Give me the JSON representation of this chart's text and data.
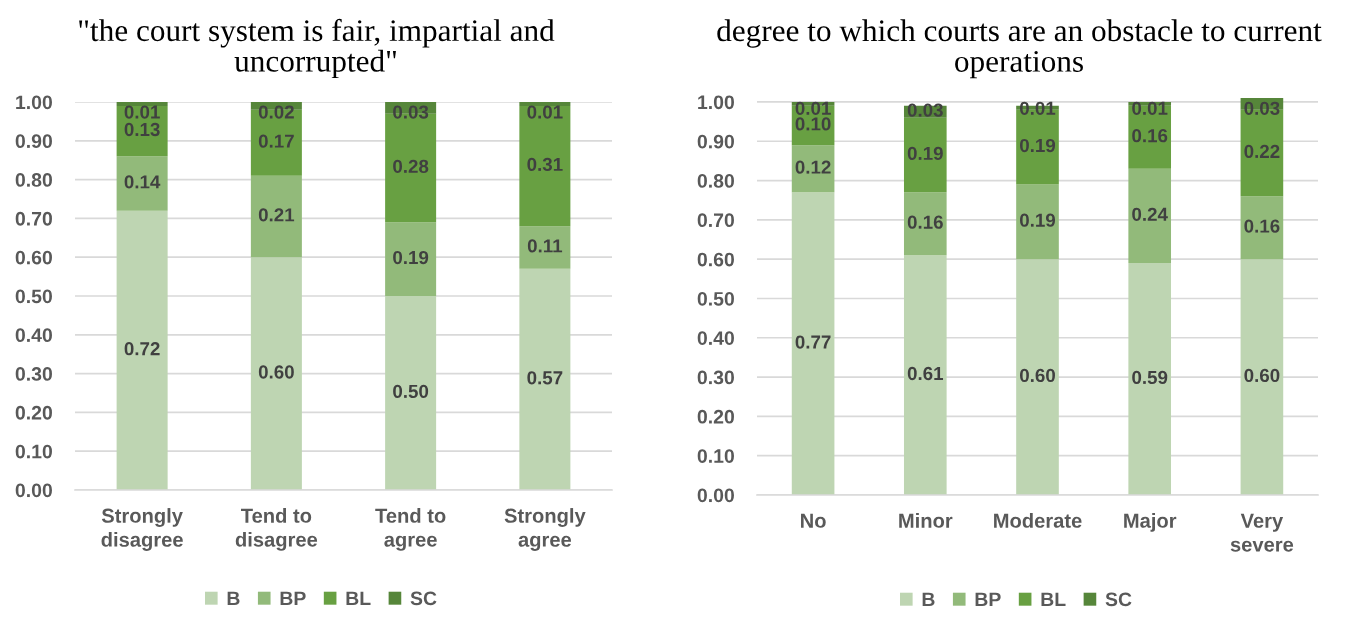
{
  "chart_data": [
    {
      "type": "bar",
      "stacked": true,
      "title": "\"the court system is fair, impartial and\nuncorrupted\"",
      "categories": [
        "Strongly\ndisagree",
        "Tend to\ndisagree",
        "Tend to\nagree",
        "Strongly\nagree"
      ],
      "series": [
        {
          "name": "B",
          "color": "#bed5b2",
          "values": [
            0.72,
            0.6,
            0.5,
            0.57
          ],
          "value_labels": [
            "0.72",
            "0.60",
            "0.50",
            "0.57"
          ]
        },
        {
          "name": "BP",
          "color": "#92ba7a",
          "values": [
            0.14,
            0.21,
            0.19,
            0.11
          ],
          "value_labels": [
            "0.14",
            "0.21",
            "0.19",
            "0.11"
          ]
        },
        {
          "name": "BL",
          "color": "#68a042",
          "values": [
            0.13,
            0.17,
            0.28,
            0.31
          ],
          "value_labels": [
            "0.13",
            "0.17",
            "0.28",
            "0.31"
          ]
        },
        {
          "name": "SC",
          "color": "#56863a",
          "values": [
            0.01,
            0.02,
            0.03,
            0.01
          ],
          "value_labels": [
            "0.01",
            "0.02",
            "0.03",
            "0.01"
          ]
        }
      ],
      "ylim": [
        0,
        1.0
      ],
      "yticks": [
        {
          "value": 0,
          "label": "0.00"
        },
        {
          "value": 0.1,
          "label": "0.10"
        },
        {
          "value": 0.2,
          "label": "0.20"
        },
        {
          "value": 0.3,
          "label": "0.30"
        },
        {
          "value": 0.4,
          "label": "0.40"
        },
        {
          "value": 0.5,
          "label": "0.50"
        },
        {
          "value": 0.6,
          "label": "0.60"
        },
        {
          "value": 0.7,
          "label": "0.70"
        },
        {
          "value": 0.8,
          "label": "0.80"
        },
        {
          "value": 0.9,
          "label": "0.90"
        },
        {
          "value": 1.0,
          "label": "1.00"
        }
      ],
      "grid": "y",
      "legend": "bottom"
    },
    {
      "type": "bar",
      "stacked": true,
      "title": "degree to which courts are an obstacle to current\noperations",
      "categories": [
        "No",
        "Minor",
        "Moderate",
        "Major",
        "Very\nsevere"
      ],
      "series": [
        {
          "name": "B",
          "color": "#bed5b2",
          "values": [
            0.77,
            0.61,
            0.6,
            0.59,
            0.6
          ],
          "value_labels": [
            "0.77",
            "0.61",
            "0.60",
            "0.59",
            "0.60"
          ]
        },
        {
          "name": "BP",
          "color": "#92ba7a",
          "values": [
            0.12,
            0.16,
            0.19,
            0.24,
            0.16
          ],
          "value_labels": [
            "0.12",
            "0.16",
            "0.19",
            "0.24",
            "0.16"
          ]
        },
        {
          "name": "BL",
          "color": "#68a042",
          "values": [
            0.1,
            0.19,
            0.19,
            0.16,
            0.22
          ],
          "value_labels": [
            "0.10",
            "0.19",
            "0.19",
            "0.16",
            "0.22"
          ]
        },
        {
          "name": "SC",
          "color": "#56863a",
          "values": [
            0.01,
            0.03,
            0.01,
            0.01,
            0.03
          ],
          "value_labels": [
            "0.01",
            "0.03",
            "0.01",
            "0.01",
            "0.03"
          ]
        }
      ],
      "ylim": [
        0,
        1.01
      ],
      "yticks": [
        {
          "value": 0,
          "label": "0.00"
        },
        {
          "value": 0.1,
          "label": "0.10"
        },
        {
          "value": 0.2,
          "label": "0.20"
        },
        {
          "value": 0.3,
          "label": "0.30"
        },
        {
          "value": 0.4,
          "label": "0.40"
        },
        {
          "value": 0.5,
          "label": "0.50"
        },
        {
          "value": 0.6,
          "label": "0.60"
        },
        {
          "value": 0.7,
          "label": "0.70"
        },
        {
          "value": 0.8,
          "label": "0.80"
        },
        {
          "value": 0.9,
          "label": "0.90"
        },
        {
          "value": 1.0,
          "label": "1.00"
        }
      ],
      "grid": "y",
      "legend": "bottom"
    }
  ]
}
